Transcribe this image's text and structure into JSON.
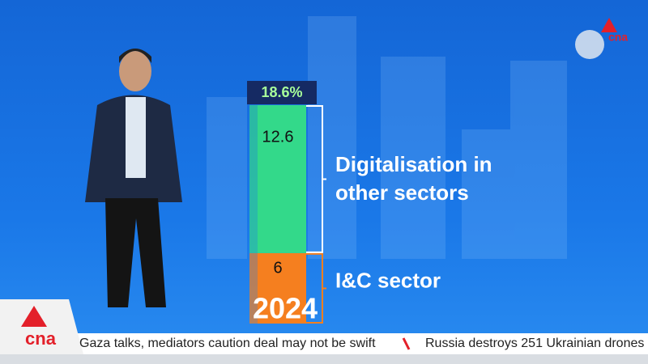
{
  "chart_data": {
    "type": "stacked-bar",
    "categories": [
      "2024"
    ],
    "series": [
      {
        "name": "I&C sector",
        "color": "#f57f1f",
        "values": [
          6
        ]
      },
      {
        "name": "Digitalisation in other sectors",
        "color": "#33d98a",
        "values": [
          12.6
        ]
      }
    ],
    "total": {
      "value": 18.6,
      "label": "18.6%"
    }
  },
  "logo": "cna",
  "ticker": {
    "items": [
      "Gaza talks, mediators caution deal may not be swift",
      "Russia destroys 251 Ukrainian drones"
    ]
  }
}
